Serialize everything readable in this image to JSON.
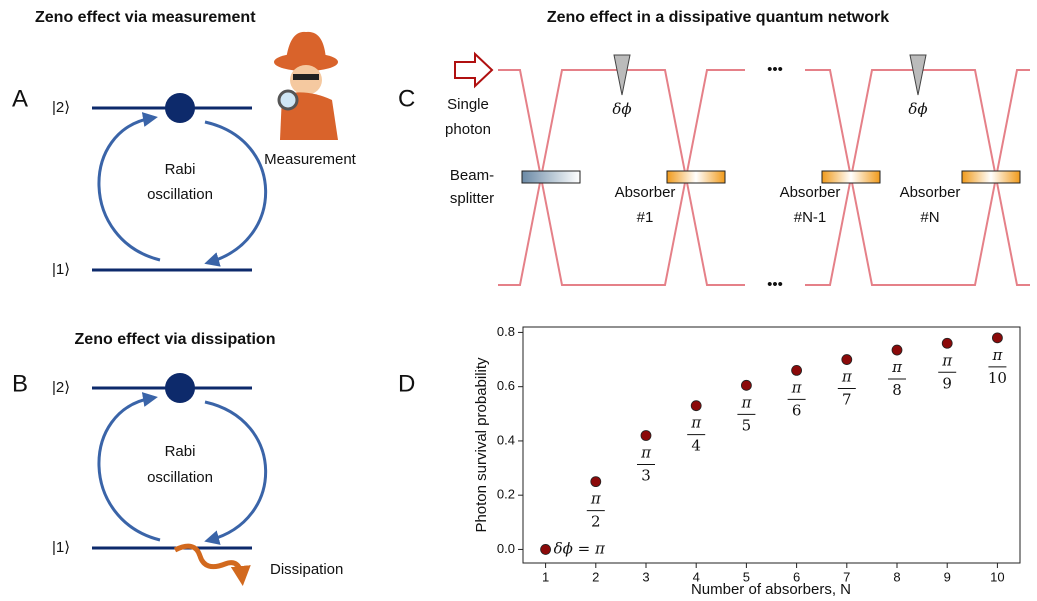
{
  "panel_a": {
    "letter": "A",
    "title": "Zeno effect via measurement",
    "level_2": "|2⟩",
    "level_1": "|1⟩",
    "process": [
      "Rabi",
      "oscillation"
    ],
    "observer": "Measurement"
  },
  "panel_b": {
    "letter": "B",
    "title": "Zeno effect via dissipation",
    "level_2": "|2⟩",
    "level_1": "|1⟩",
    "process": [
      "Rabi",
      "oscillation"
    ],
    "loss": "Dissipation"
  },
  "panel_c": {
    "letter": "C",
    "title": "Zeno effect in a dissipative quantum network",
    "source": [
      "Single",
      "photon"
    ],
    "phase": "δϕ",
    "beamsplitter": [
      "Beam-",
      "splitter"
    ],
    "absorbers": [
      [
        "Absorber",
        "#1"
      ],
      [
        "Absorber",
        "#N-1"
      ],
      [
        "Absorber",
        "#N"
      ]
    ],
    "ellipsis": "•••"
  },
  "panel_d": {
    "letter": "D"
  },
  "chart_data": {
    "type": "scatter",
    "x_label": "Number of absorbers, N",
    "y_label": "Photon survival probability",
    "x": [
      1,
      2,
      3,
      4,
      5,
      6,
      7,
      8,
      9,
      10
    ],
    "values": [
      0.0,
      0.25,
      0.42,
      0.53,
      0.605,
      0.66,
      0.7,
      0.735,
      0.76,
      0.78
    ],
    "color": "#8b0a0a",
    "xlim": [
      0.55,
      10.45
    ],
    "ylim": [
      -0.05,
      0.82
    ],
    "xticks": [
      1,
      2,
      3,
      4,
      5,
      6,
      7,
      8,
      9,
      10
    ],
    "yticks": [
      {
        "value": 0,
        "label": "0.0"
      },
      0.2,
      0.4,
      0.6,
      0.8
    ],
    "first_label": "δϕ = π",
    "fraction_labels": [
      {
        "num": "π",
        "den": "2"
      },
      {
        "num": "π",
        "den": "3"
      },
      {
        "num": "π",
        "den": "4"
      },
      {
        "num": "π",
        "den": "5"
      },
      {
        "num": "π",
        "den": "6"
      },
      {
        "num": "π",
        "den": "7"
      },
      {
        "num": "π",
        "den": "8"
      },
      {
        "num": "π",
        "den": "9"
      },
      {
        "num": "π",
        "den": "10"
      }
    ]
  }
}
